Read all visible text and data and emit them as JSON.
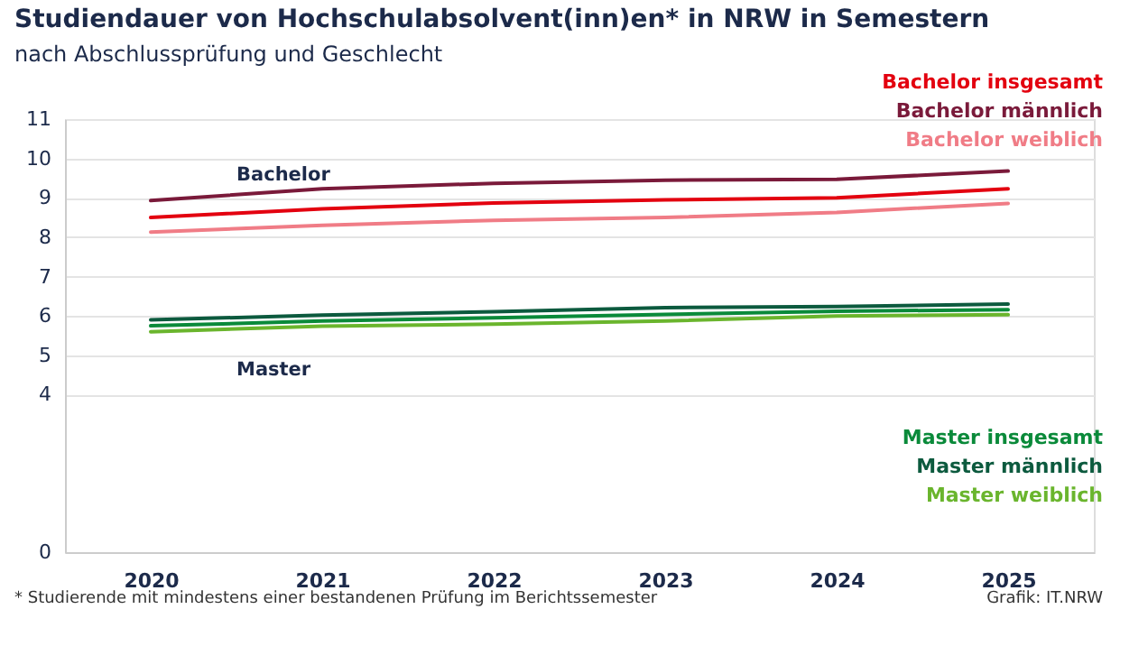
{
  "chart_data": {
    "type": "line",
    "title": "Studiendauer von Hochschulabsolvent(inn)en* in NRW in Semestern",
    "subtitle": "nach Abschlussprüfung und Geschlecht",
    "categories": [
      "2020",
      "2021",
      "2022",
      "2023",
      "2024",
      "2025"
    ],
    "series": [
      {
        "name": "Bachelor insgesamt",
        "color": "#e3000f",
        "values": [
          8.5,
          8.72,
          8.87,
          8.95,
          9.0,
          9.23
        ]
      },
      {
        "name": "Bachelor männlich",
        "color": "#7a1a3a",
        "values": [
          8.93,
          9.23,
          9.37,
          9.45,
          9.47,
          9.68
        ]
      },
      {
        "name": "Bachelor weiblich",
        "color": "#f07c86",
        "values": [
          8.13,
          8.3,
          8.43,
          8.5,
          8.63,
          8.86
        ]
      },
      {
        "name": "Master insgesamt",
        "color": "#0a8a3a",
        "values": [
          5.75,
          5.87,
          5.95,
          6.04,
          6.12,
          6.16
        ]
      },
      {
        "name": "Master männlich",
        "color": "#0c5a3e",
        "values": [
          5.9,
          6.02,
          6.11,
          6.21,
          6.24,
          6.3
        ]
      },
      {
        "name": "Master weiblich",
        "color": "#6ab52d",
        "values": [
          5.6,
          5.74,
          5.79,
          5.87,
          6.0,
          6.03
        ]
      }
    ],
    "ylim": [
      0,
      11
    ],
    "yticks": [
      0,
      4,
      5,
      6,
      7,
      8,
      9,
      10,
      11
    ],
    "grid": "y",
    "legend": "right",
    "marker": "none",
    "line_style": "solid",
    "annotations": [
      "Bachelor",
      "Master",
      "* Studierende mit mindestens einer bestandenen Prüfung im Berichtssemester",
      "Grafik: IT.NRW"
    ]
  }
}
